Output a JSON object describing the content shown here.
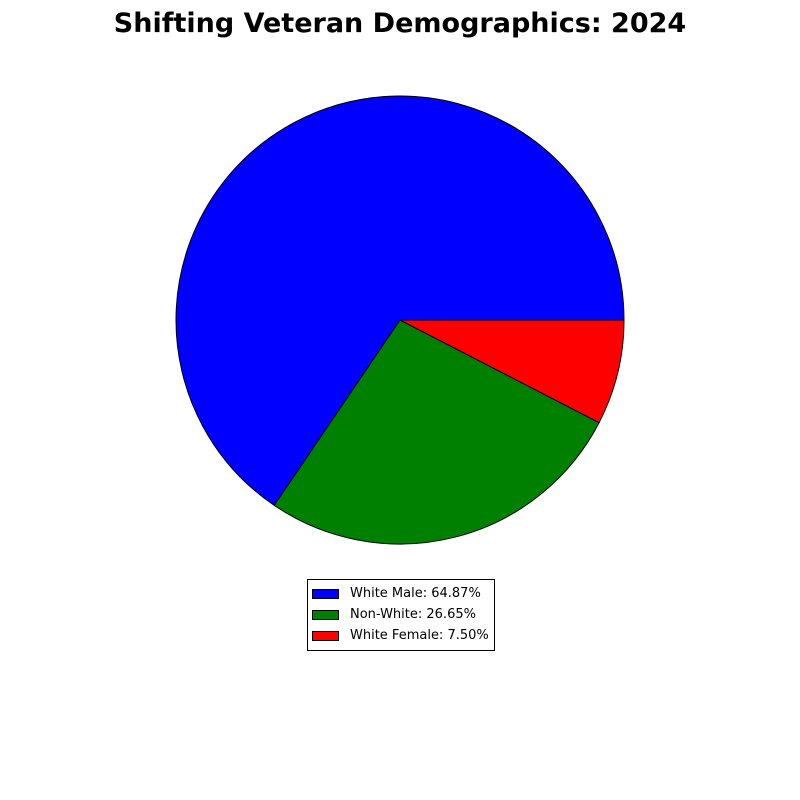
{
  "chart_data": {
    "type": "pie",
    "title": "Shifting Veteran Demographics: 2024",
    "slices": [
      {
        "label": "White Male",
        "value": 64.87,
        "color": "#0000ff",
        "legend": "White Male: 64.87%"
      },
      {
        "label": "Non-White",
        "value": 26.65,
        "color": "#008000",
        "legend": "Non-White: 26.65%"
      },
      {
        "label": "White Female",
        "value": 7.5,
        "color": "#ff0000",
        "legend": "White Female: 7.50%"
      }
    ],
    "start_angle_deg": 0,
    "direction": "counterclockwise",
    "legend_position": "bottom-center"
  }
}
